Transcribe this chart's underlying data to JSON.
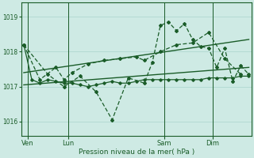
{
  "bg_color": "#ceeae4",
  "grid_color": "#aad4cc",
  "dark": "#1a5c28",
  "xlabel": "Pression niveau de la mer( hPa )",
  "ylim": [
    1015.6,
    1019.4
  ],
  "yticks": [
    1016,
    1017,
    1018,
    1019
  ],
  "xlim": [
    -0.3,
    28.3
  ],
  "day_positions": [
    0.5,
    5.5,
    17.5,
    23.5
  ],
  "day_labels": [
    "Ven",
    "Lun",
    "Sam",
    "Dim"
  ],
  "vline_positions": [
    0.5,
    5.5,
    17.5,
    23.5
  ],
  "trend1_x": [
    0,
    28
  ],
  "trend1_y": [
    1017.05,
    1017.55
  ],
  "trend2_x": [
    0,
    28
  ],
  "trend2_y": [
    1017.4,
    1018.35
  ],
  "flat_x": [
    0,
    1,
    2,
    3,
    4,
    5,
    6,
    7,
    8,
    9,
    10,
    11,
    12,
    13,
    14,
    15,
    16,
    17,
    18,
    19,
    20,
    21,
    22,
    23,
    24,
    25,
    26,
    27,
    28
  ],
  "flat_y": [
    1018.2,
    1017.2,
    1017.1,
    1017.2,
    1017.15,
    1017.1,
    1017.1,
    1017.05,
    1017.0,
    1017.05,
    1017.1,
    1017.15,
    1017.1,
    1017.1,
    1017.15,
    1017.2,
    1017.2,
    1017.2,
    1017.2,
    1017.2,
    1017.2,
    1017.2,
    1017.2,
    1017.25,
    1017.25,
    1017.25,
    1017.25,
    1017.3,
    1017.3
  ],
  "mid_x": [
    0,
    2,
    4,
    5,
    6,
    8,
    10,
    12,
    14,
    15,
    17,
    19,
    21,
    23,
    25,
    27
  ],
  "mid_y": [
    1018.2,
    1017.2,
    1017.55,
    1017.2,
    1017.4,
    1017.65,
    1017.75,
    1017.8,
    1017.85,
    1017.75,
    1018.0,
    1018.2,
    1018.25,
    1018.55,
    1017.8,
    1017.35
  ],
  "high_x": [
    0,
    3,
    5,
    7,
    9,
    11,
    13,
    15,
    16,
    17,
    18,
    19,
    20,
    21,
    22,
    23,
    24,
    25,
    26,
    27,
    28
  ],
  "high_y": [
    1018.2,
    1017.35,
    1017.0,
    1017.3,
    1016.85,
    1016.05,
    1017.25,
    1017.1,
    1017.7,
    1018.75,
    1018.85,
    1018.6,
    1018.8,
    1018.35,
    1018.15,
    1018.1,
    1017.55,
    1018.1,
    1017.15,
    1017.6,
    1017.35
  ]
}
